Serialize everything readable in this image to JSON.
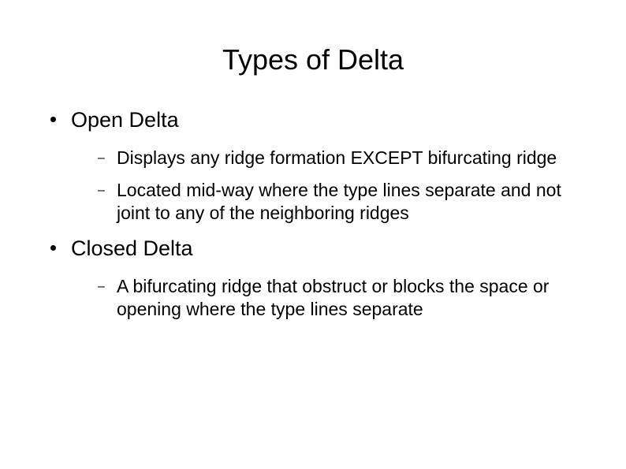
{
  "title": "Types of Delta",
  "items": [
    {
      "label": "Open Delta",
      "sub": [
        "Displays any ridge formation EXCEPT bifurcating ridge",
        "Located mid-way where the type lines separate and not joint to any of the neighboring ridges"
      ]
    },
    {
      "label": "Closed Delta",
      "sub": [
        "A bifurcating ridge that obstruct or blocks the space or opening where the type lines separate"
      ]
    }
  ],
  "colors": {
    "background": "#ffffff",
    "text": "#000000"
  },
  "typography": {
    "title_fontsize": 36,
    "level1_fontsize": 27,
    "level2_fontsize": 23,
    "font_family": "Arial"
  }
}
